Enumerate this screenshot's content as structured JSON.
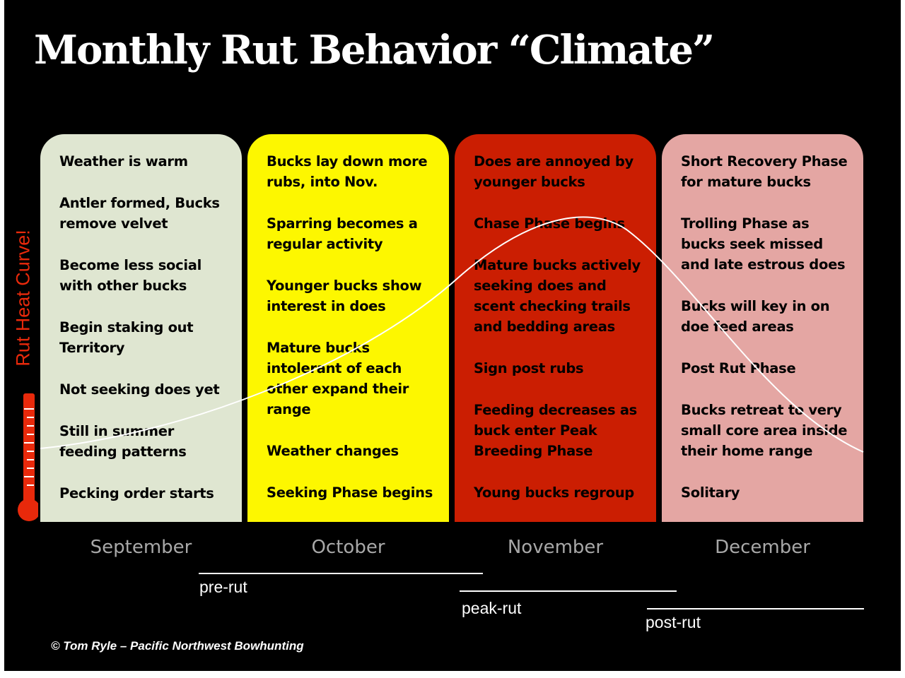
{
  "title": "Monthly Rut Behavior “Climate”",
  "y_label": "Rut Heat Curve!",
  "months": [
    {
      "name": "September",
      "color": "#dfe6d1",
      "items": [
        "Weather is warm",
        "Antler formed, Bucks remove velvet",
        "Become less social with other bucks",
        "Begin staking out Territory",
        "Not seeking does yet",
        "Still in summer feeding patterns",
        "Pecking order starts"
      ]
    },
    {
      "name": "October",
      "color": "#fdf700",
      "items": [
        "Bucks lay down more rubs, into Nov.",
        "Sparring becomes a regular activity",
        "Younger bucks show interest in does",
        "Mature bucks intolerant of each other expand their range",
        "Weather changes",
        "Seeking Phase begins"
      ]
    },
    {
      "name": "November",
      "color": "#cb1e02",
      "items": [
        "Does are annoyed by younger bucks",
        "Chase Phase begins",
        "Mature bucks actively seeking does and scent checking trails and bedding areas",
        "Sign post rubs",
        "Feeding decreases as buck enter Peak Breeding Phase",
        "Young bucks regroup"
      ]
    },
    {
      "name": "December",
      "color": "#e4a6a3",
      "items": [
        "Short Recovery Phase for mature bucks",
        "Trolling Phase as bucks seek missed and late estrous does",
        "Bucks will key in on doe feed areas",
        "Post Rut Phase",
        "Bucks retreat to very small core area inside their home range",
        "Solitary"
      ]
    }
  ],
  "phases": [
    "pre-rut",
    "peak-rut",
    "post-rut"
  ],
  "copyright": "© Tom Ryle – Pacific Northwest Bowhunting",
  "colors": {
    "background": "#000000",
    "curve": "#ffffff",
    "thermometer": "#e8290b",
    "month_label": "#a8a8a8"
  }
}
